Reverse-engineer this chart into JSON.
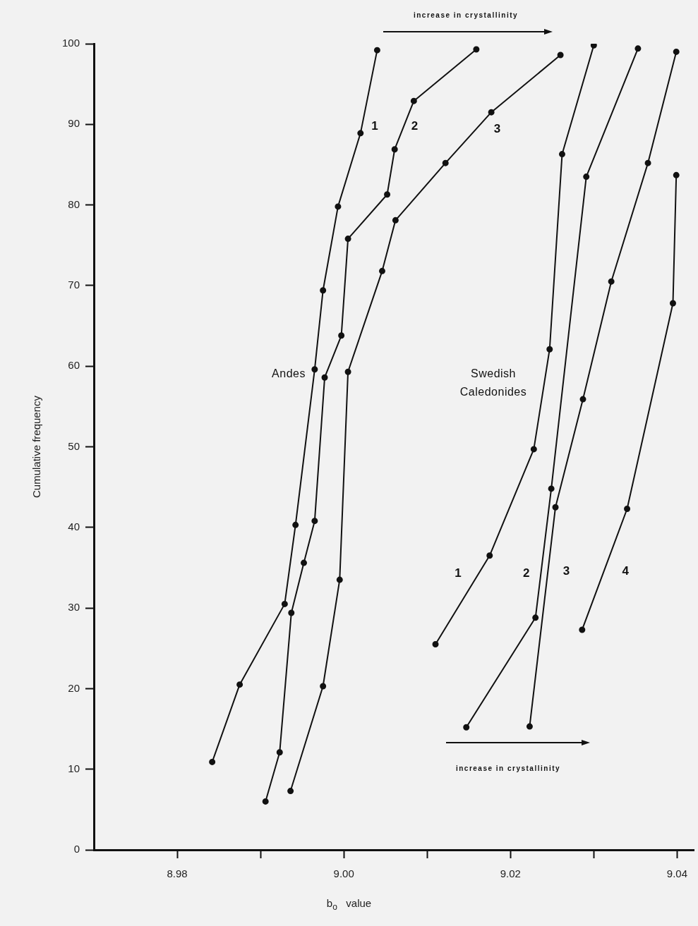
{
  "chart_data": {
    "type": "line",
    "xlabel": "b$_{o}$ value",
    "ylabel": "Cumulative frequency",
    "xlim": [
      8.97,
      9.042
    ],
    "xticks": [
      8.98,
      {
        "value": 8.99,
        "label": null
      },
      {
        "value": 9.0,
        "label": "9.00"
      },
      {
        "value": 9.01,
        "label": null
      },
      9.02,
      {
        "value": 9.03,
        "label": null
      },
      9.04
    ],
    "ylim": [
      0,
      100
    ],
    "yticks": [
      0,
      10,
      20,
      30,
      40,
      50,
      60,
      70,
      80,
      90,
      100
    ],
    "grid": false,
    "legend": false,
    "marker": "circle",
    "line_style": "solid",
    "annotations": [
      "increase in crystallinity",
      "Andes",
      "Swedish Caledonides",
      "increase in crystallinity"
    ],
    "series": [
      {
        "name": "1",
        "color": "#111111",
        "x": [
          8.9842,
          8.9875,
          8.9929,
          8.9942,
          8.9965,
          8.9975,
          8.9993,
          9.002,
          9.004
        ],
        "values": [
          10.9,
          20.5,
          30.5,
          40.3,
          59.6,
          69.4,
          79.8,
          88.9,
          99.2
        ]
      },
      {
        "name": "2",
        "color": "#111111",
        "x": [
          8.9906,
          8.9923,
          8.9937,
          8.9952,
          8.9965,
          8.9977,
          8.9997,
          9.0005,
          9.0052,
          9.0061,
          9.0084,
          9.0159
        ],
        "values": [
          6.0,
          12.1,
          29.4,
          35.6,
          40.8,
          58.6,
          63.8,
          75.8,
          81.3,
          86.9,
          92.9,
          99.3
        ]
      },
      {
        "name": "3",
        "color": "#111111",
        "x": [
          8.9936,
          8.9975,
          8.9995,
          9.0005,
          9.0046,
          9.0062,
          9.0122,
          9.0177,
          9.026
        ],
        "values": [
          7.3,
          20.3,
          33.5,
          59.3,
          71.8,
          78.1,
          85.2,
          91.5,
          98.6
        ]
      },
      {
        "name": "1",
        "color": "#111111",
        "x": [
          9.011,
          9.0175,
          9.0228,
          9.0247,
          9.0262,
          9.03
        ],
        "values": [
          25.5,
          36.5,
          49.7,
          62.1,
          86.3,
          99.8
        ]
      },
      {
        "name": "2",
        "color": "#111111",
        "x": [
          9.0147,
          9.023,
          9.0249,
          9.0291,
          9.0353
        ],
        "values": [
          15.2,
          28.8,
          44.8,
          83.5,
          99.4
        ]
      },
      {
        "name": "3",
        "color": "#111111",
        "x": [
          9.0223,
          9.0254,
          9.0287,
          9.0321,
          9.0365,
          9.0399
        ],
        "values": [
          15.3,
          42.5,
          55.9,
          70.5,
          85.2,
          99.0
        ]
      },
      {
        "name": "4",
        "color": "#111111",
        "x": [
          9.0286,
          9.034,
          9.0395,
          9.0399
        ],
        "values": [
          27.3,
          42.3,
          67.8,
          83.7
        ]
      }
    ]
  }
}
